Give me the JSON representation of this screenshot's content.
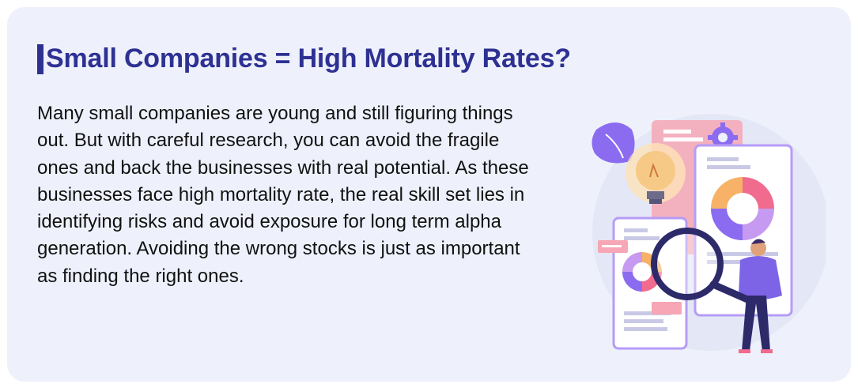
{
  "card": {
    "title": "Small Companies = High Mortality Rates?",
    "paragraph": "Many small companies are young and still figuring things out. But with careful research, you can avoid the fragile ones and back the businesses with real potential. As these businesses face high mortality rate, the real skill set lies in identifying risks and avoid exposure for long term alpha generation. Avoiding the wrong stocks is just as important as finding the right ones."
  },
  "colors": {
    "card_bg": "#eef1fb",
    "title": "#2e3192",
    "text": "#111111",
    "accent_purple": "#8b6cf0",
    "accent_pink": "#f06b8e",
    "accent_orange": "#f7b267"
  },
  "illustration": {
    "icon": "analytics-magnifier-illustration"
  }
}
